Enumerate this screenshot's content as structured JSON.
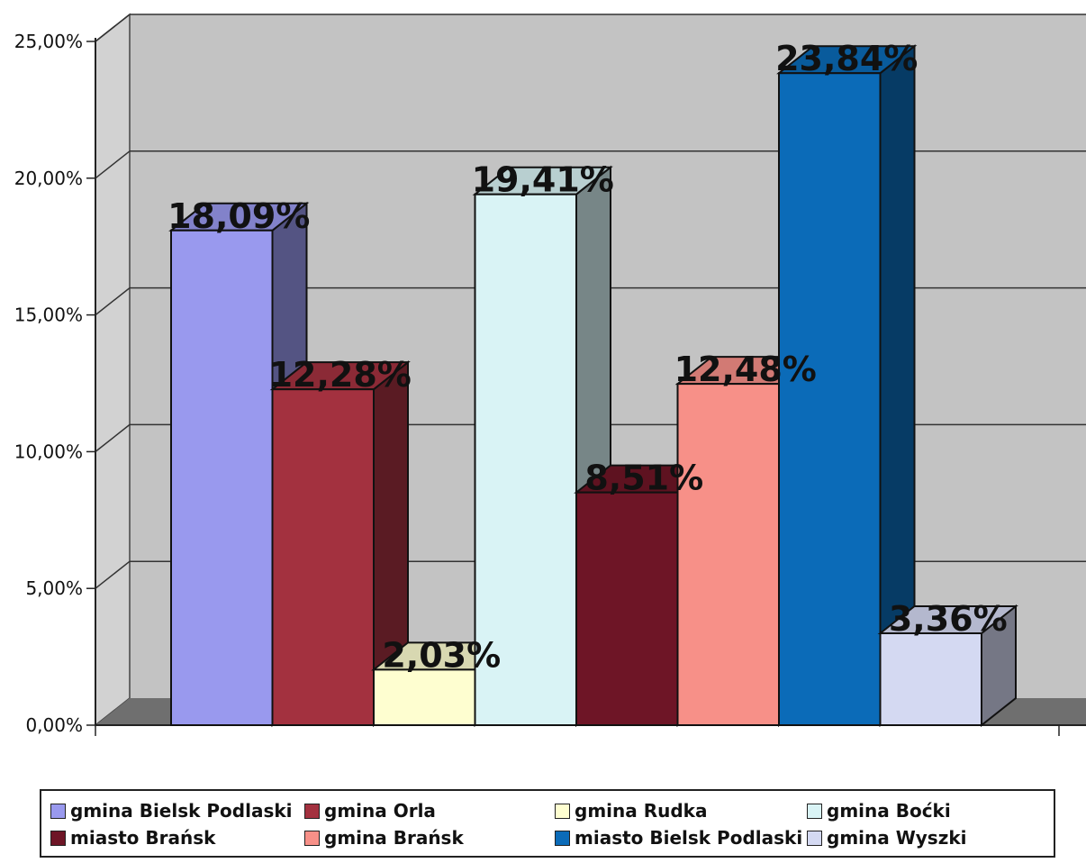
{
  "chart_data": {
    "type": "bar",
    "title": "",
    "xlabel": "",
    "ylabel": "",
    "ylim": [
      0,
      25
    ],
    "yticks": [
      "0,00%",
      "5,00%",
      "10,00%",
      "15,00%",
      "20,00%",
      "25,00%"
    ],
    "grid": true,
    "legend_position": "bottom",
    "series": [
      {
        "name": "gmina Bielsk Podlaski",
        "value": 18.09,
        "label": "18,09%",
        "color": "#9999ee"
      },
      {
        "name": "gmina Orla",
        "value": 12.28,
        "label": "12,28%",
        "color": "#a3313f"
      },
      {
        "name": "gmina Rudka",
        "value": 2.03,
        "label": "2,03%",
        "color": "#fefed0"
      },
      {
        "name": "gmina Boćki",
        "value": 19.41,
        "label": "19,41%",
        "color": "#d9f3f5"
      },
      {
        "name": "miasto Brańsk",
        "value": 8.51,
        "label": "8,51%",
        "color": "#6e1526"
      },
      {
        "name": "gmina Brańsk",
        "value": 12.48,
        "label": "12,48%",
        "color": "#f79088"
      },
      {
        "name": "miasto Bielsk Podlaski",
        "value": 23.84,
        "label": "23,84%",
        "color": "#0b6bb8"
      },
      {
        "name": "gmina Wyszki",
        "value": 3.36,
        "label": "3,36%",
        "color": "#d4d9f2"
      }
    ]
  }
}
